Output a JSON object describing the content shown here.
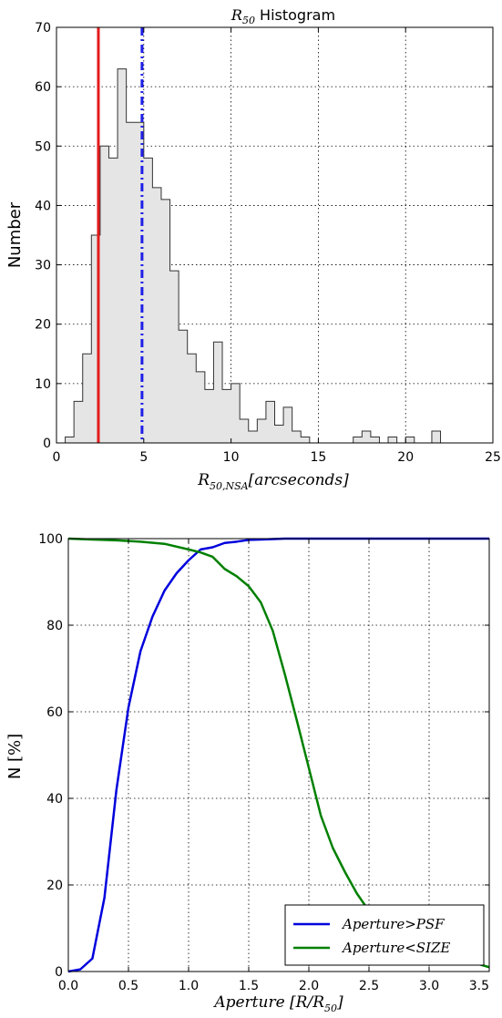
{
  "chart_data": [
    {
      "type": "histogram",
      "title": "R50 Histogram",
      "title_parts": {
        "base": "R",
        "sub": "50",
        "rest": " Histogram"
      },
      "xlabel": "R50,NSA[arcseconds]",
      "xlabel_parts": {
        "base": "R",
        "sub": "50,NSA",
        "rest": "[arcseconds]"
      },
      "ylabel": "Number",
      "xlim": [
        0,
        25
      ],
      "ylim": [
        0,
        70
      ],
      "xticks": [
        0,
        5,
        10,
        15,
        20,
        25
      ],
      "yticks": [
        0,
        10,
        20,
        30,
        40,
        50,
        60,
        70
      ],
      "grid": true,
      "bin_width": 0.5,
      "bins": [
        {
          "x0": 0.5,
          "count": 1
        },
        {
          "x0": 1.0,
          "count": 7
        },
        {
          "x0": 1.5,
          "count": 15
        },
        {
          "x0": 2.0,
          "count": 35
        },
        {
          "x0": 2.5,
          "count": 50
        },
        {
          "x0": 3.0,
          "count": 48
        },
        {
          "x0": 3.5,
          "count": 63
        },
        {
          "x0": 4.0,
          "count": 54
        },
        {
          "x0": 4.5,
          "count": 54
        },
        {
          "x0": 5.0,
          "count": 48
        },
        {
          "x0": 5.5,
          "count": 43
        },
        {
          "x0": 6.0,
          "count": 41
        },
        {
          "x0": 6.5,
          "count": 29
        },
        {
          "x0": 7.0,
          "count": 19
        },
        {
          "x0": 7.5,
          "count": 15
        },
        {
          "x0": 8.0,
          "count": 12
        },
        {
          "x0": 8.5,
          "count": 9
        },
        {
          "x0": 9.0,
          "count": 17
        },
        {
          "x0": 9.5,
          "count": 9
        },
        {
          "x0": 10.0,
          "count": 10
        },
        {
          "x0": 10.5,
          "count": 4
        },
        {
          "x0": 11.0,
          "count": 2
        },
        {
          "x0": 11.5,
          "count": 4
        },
        {
          "x0": 12.0,
          "count": 7
        },
        {
          "x0": 12.5,
          "count": 3
        },
        {
          "x0": 13.0,
          "count": 6
        },
        {
          "x0": 13.5,
          "count": 2
        },
        {
          "x0": 14.0,
          "count": 1
        },
        {
          "x0": 14.5,
          "count": 0
        },
        {
          "x0": 15.0,
          "count": 0
        },
        {
          "x0": 15.5,
          "count": 0
        },
        {
          "x0": 16.0,
          "count": 0
        },
        {
          "x0": 16.5,
          "count": 0
        },
        {
          "x0": 17.0,
          "count": 1
        },
        {
          "x0": 17.5,
          "count": 2
        },
        {
          "x0": 18.0,
          "count": 1
        },
        {
          "x0": 18.5,
          "count": 0
        },
        {
          "x0": 19.0,
          "count": 1
        },
        {
          "x0": 19.5,
          "count": 0
        },
        {
          "x0": 20.0,
          "count": 1
        },
        {
          "x0": 20.5,
          "count": 0
        },
        {
          "x0": 21.0,
          "count": 0
        },
        {
          "x0": 21.5,
          "count": 2
        },
        {
          "x0": 22.0,
          "count": 0
        }
      ],
      "vlines": [
        {
          "x": 2.4,
          "color": "#e41a1c",
          "style": "solid"
        },
        {
          "x": 4.9,
          "color": "#1f1fe8",
          "style": "dashdot"
        }
      ],
      "bar_fill": "#e5e5e5",
      "bar_edge": "#333333"
    },
    {
      "type": "line",
      "xlabel": "Aperture [R/R50]",
      "xlabel_parts": {
        "base": "Aperture [R/R",
        "sub": "50",
        "rest": "]"
      },
      "ylabel": "N [%]",
      "ylabel_parts": {
        "base": "N ",
        "unit": "[%]"
      },
      "xlim": [
        0,
        3.5
      ],
      "ylim": [
        0,
        100
      ],
      "xticks": [
        "0.0",
        "0.5",
        "1.0",
        "1.5",
        "2.0",
        "2.5",
        "3.0",
        "3.5"
      ],
      "yticks": [
        0,
        20,
        40,
        60,
        80,
        100
      ],
      "grid": true,
      "legend": "bottom-right",
      "series": [
        {
          "name": "Aperture > PSF",
          "name_parts": {
            "a": "Aperture",
            "op": ">",
            "b": "PSF"
          },
          "color": "#0000dd",
          "x": [
            0,
            0.1,
            0.2,
            0.3,
            0.4,
            0.5,
            0.6,
            0.7,
            0.8,
            0.9,
            1.0,
            1.1,
            1.2,
            1.3,
            1.4,
            1.5,
            1.6,
            1.7,
            1.8,
            1.9,
            2.0,
            2.5,
            3.0,
            3.5
          ],
          "y": [
            0,
            0.5,
            3,
            17,
            42,
            61,
            74,
            82,
            88,
            92,
            95,
            97.5,
            98,
            99,
            99.3,
            99.7,
            99.8,
            99.9,
            100,
            100,
            100,
            100,
            100,
            100
          ]
        },
        {
          "name": "Aperture < SIZE",
          "name_parts": {
            "a": "Aperture",
            "op": "<",
            "b": "SIZE"
          },
          "color": "#008000",
          "x": [
            0,
            0.2,
            0.4,
            0.6,
            0.8,
            1.0,
            1.1,
            1.2,
            1.3,
            1.4,
            1.5,
            1.6,
            1.7,
            1.8,
            1.9,
            2.0,
            2.1,
            2.2,
            2.3,
            2.4,
            2.5,
            2.6,
            2.8,
            3.0,
            3.2,
            3.4,
            3.5
          ],
          "y": [
            100,
            99.8,
            99.6,
            99.3,
            98.8,
            97.5,
            96.8,
            95.8,
            93,
            91.3,
            89,
            85.3,
            78.7,
            68.7,
            58,
            47,
            36,
            28.5,
            23,
            18,
            14,
            11,
            7,
            4.5,
            3,
            1.8,
            1
          ]
        }
      ]
    }
  ]
}
